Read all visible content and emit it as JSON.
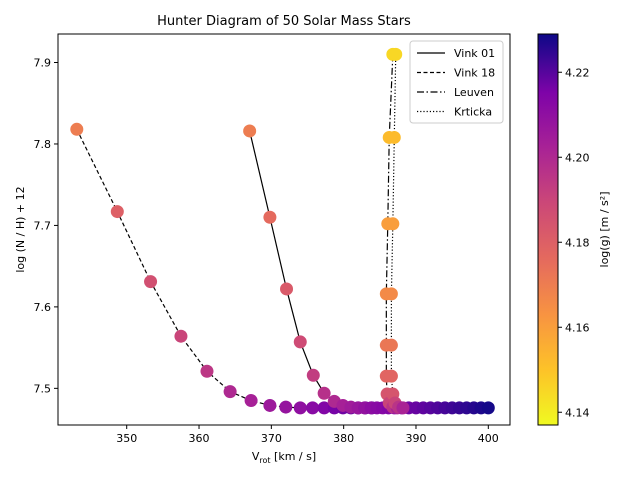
{
  "chart_data": {
    "type": "scatter",
    "title": "Hunter Diagram of 50 Solar Mass Stars",
    "xlabel_main": "V",
    "xlabel_sub": "rot",
    "xlabel_rest": " [km / s]",
    "ylabel": "log (N / H) + 12",
    "colorbar_label": "log(g) [m / s²]",
    "xlim": [
      340.5,
      403
    ],
    "ylim": [
      7.455,
      7.935
    ],
    "clim": [
      4.137,
      4.229
    ],
    "xticks": [
      350,
      360,
      370,
      380,
      390,
      400
    ],
    "yticks": [
      7.5,
      7.6,
      7.7,
      7.8,
      7.9
    ],
    "cticks": [
      4.14,
      4.16,
      4.18,
      4.2,
      4.22
    ],
    "colormap": "plasma",
    "legend_position": "upper right",
    "series": [
      {
        "name": "Vink 18",
        "line_style": "dashed",
        "x": [
          343.1,
          348.7,
          353.3,
          357.5,
          361.1,
          364.3,
          367.2,
          369.8,
          372.0,
          374.0,
          375.7,
          377.3,
          378.7,
          379.9,
          381.0,
          382.0,
          383.0,
          383.9
        ],
        "y": [
          7.818,
          7.717,
          7.631,
          7.564,
          7.521,
          7.496,
          7.485,
          7.479,
          7.477,
          7.476,
          7.476,
          7.476,
          7.476,
          7.476,
          7.476,
          7.476,
          7.476,
          7.476
        ],
        "logg": [
          4.17,
          4.18,
          4.186,
          4.19,
          4.195,
          4.2,
          4.203,
          4.206,
          4.208,
          4.21,
          4.212,
          4.214,
          4.216,
          4.217,
          4.218,
          4.219,
          4.22,
          4.221
        ]
      },
      {
        "name": "Vink 01",
        "line_style": "solid",
        "x": [
          367.0,
          369.8,
          372.1,
          374.0,
          375.8,
          377.3,
          378.7,
          379.9,
          381.0,
          382.0,
          382.9,
          383.8,
          384.6,
          385.4,
          386.2,
          387.0,
          388.0,
          389.0,
          390.0,
          391.0,
          392.0,
          393.0,
          394.0,
          395.0,
          396.0,
          397.0,
          398.0,
          399.0,
          400.0
        ],
        "y": [
          7.816,
          7.71,
          7.622,
          7.557,
          7.516,
          7.494,
          7.484,
          7.479,
          7.477,
          7.476,
          7.476,
          7.476,
          7.476,
          7.476,
          7.476,
          7.476,
          7.476,
          7.476,
          7.476,
          7.476,
          7.476,
          7.476,
          7.476,
          7.476,
          7.476,
          7.476,
          7.476,
          7.476,
          7.476
        ],
        "logg": [
          4.17,
          4.176,
          4.182,
          4.188,
          4.193,
          4.197,
          4.2,
          4.203,
          4.205,
          4.207,
          4.209,
          4.211,
          4.212,
          4.213,
          4.214,
          4.215,
          4.216,
          4.217,
          4.218,
          4.219,
          4.22,
          4.221,
          4.222,
          4.223,
          4.224,
          4.225,
          4.226,
          4.227,
          4.228
        ]
      },
      {
        "name": "Leuven",
        "line_style": "dashdot",
        "x": [
          386.8,
          386.3,
          386.1,
          385.9,
          385.9,
          385.9,
          386.0,
          386.3,
          386.8,
          387.4
        ],
        "y": [
          7.91,
          7.808,
          7.702,
          7.616,
          7.553,
          7.515,
          7.493,
          7.482,
          7.477,
          7.476
        ],
        "logg": [
          4.145,
          4.152,
          4.16,
          4.166,
          4.172,
          4.178,
          4.184,
          4.19,
          4.196,
          4.202
        ]
      },
      {
        "name": "Krticka",
        "line_style": "dotted",
        "x": [
          387.2,
          387.0,
          386.8,
          386.6,
          386.6,
          386.6,
          386.8,
          387.1,
          387.6,
          388.2
        ],
        "y": [
          7.91,
          7.808,
          7.702,
          7.616,
          7.553,
          7.515,
          7.493,
          7.482,
          7.477,
          7.476
        ],
        "logg": [
          4.145,
          4.152,
          4.16,
          4.166,
          4.172,
          4.178,
          4.184,
          4.19,
          4.196,
          4.202
        ]
      }
    ]
  }
}
